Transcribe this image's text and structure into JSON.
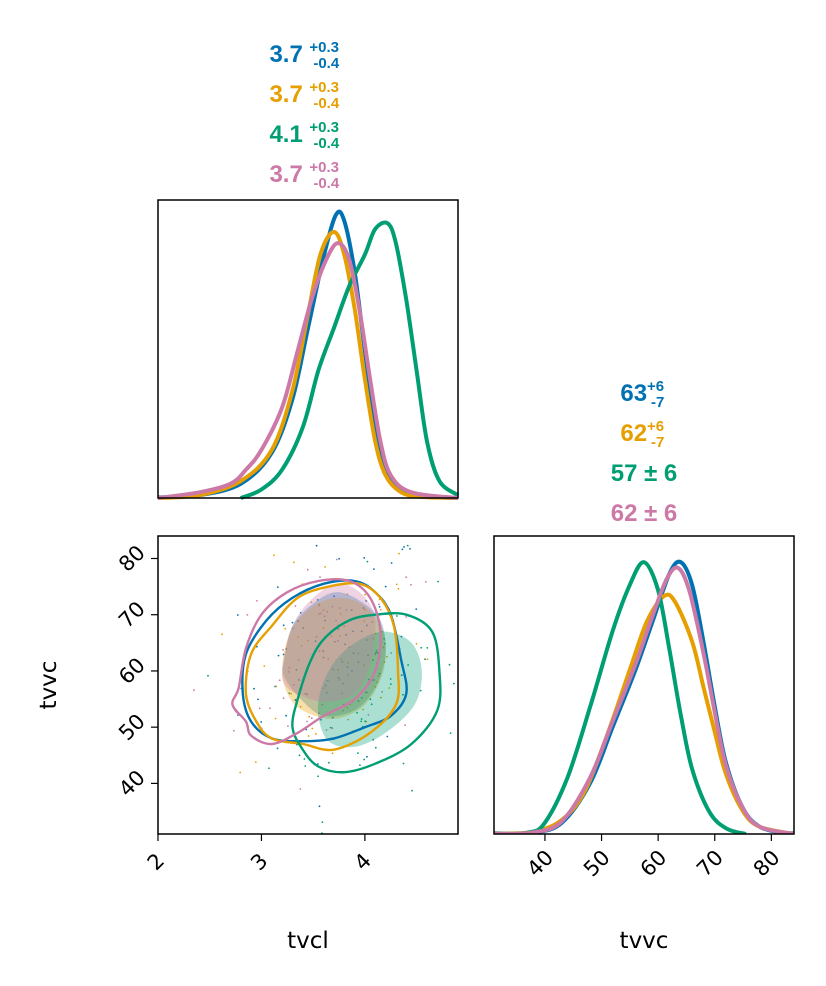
{
  "colors": {
    "blue": "#0072b2",
    "orange": "#e69f00",
    "green": "#009e73",
    "pink": "#cc79a7"
  },
  "chart_data": {
    "type": "corner",
    "params": [
      "tvcl",
      "tvvc"
    ],
    "axes": {
      "tvcl": {
        "label": "tvcl",
        "range": [
          2.0,
          4.9
        ],
        "ticks": [
          "2",
          "3",
          "4"
        ]
      },
      "tvvc": {
        "label": "tvvc",
        "range": [
          31,
          84
        ],
        "ticks": [
          "40",
          "50",
          "60",
          "70",
          "80"
        ]
      }
    },
    "series": [
      {
        "color": "#0072b2",
        "tvcl_summary": {
          "median": "3.7",
          "plus": "+0.3",
          "minus": "-0.4"
        },
        "tvvc_summary": {
          "median": "63",
          "plus": "+6",
          "minus": "-7"
        }
      },
      {
        "color": "#e69f00",
        "tvcl_summary": {
          "median": "3.7",
          "plus": "+0.3",
          "minus": "-0.4"
        },
        "tvvc_summary": {
          "median": "62",
          "plus": "+6",
          "minus": "-7"
        }
      },
      {
        "color": "#009e73",
        "tvcl_summary": {
          "median": "4.1",
          "plus": "+0.3",
          "minus": "-0.4"
        },
        "tvvc_summary": {
          "text": "57 ± 6"
        }
      },
      {
        "color": "#cc79a7",
        "tvcl_summary": {
          "median": "3.7",
          "plus": "+0.3",
          "minus": "-0.4"
        },
        "tvvc_summary": {
          "text": "62 ± 6"
        }
      }
    ],
    "marginal_tvcl": [
      {
        "color": "#0072b2",
        "points": [
          [
            2.0,
            0.002
          ],
          [
            2.4,
            0.01
          ],
          [
            2.8,
            0.05
          ],
          [
            3.1,
            0.16
          ],
          [
            3.3,
            0.35
          ],
          [
            3.45,
            0.6
          ],
          [
            3.6,
            0.85
          ],
          [
            3.72,
            1.0
          ],
          [
            3.8,
            0.98
          ],
          [
            3.9,
            0.8
          ],
          [
            4.0,
            0.52
          ],
          [
            4.1,
            0.25
          ],
          [
            4.2,
            0.1
          ],
          [
            4.35,
            0.03
          ],
          [
            4.55,
            0.006
          ],
          [
            4.9,
            0.0
          ]
        ]
      },
      {
        "color": "#e69f00",
        "points": [
          [
            2.0,
            0.0
          ],
          [
            2.4,
            0.01
          ],
          [
            2.8,
            0.06
          ],
          [
            3.1,
            0.17
          ],
          [
            3.3,
            0.38
          ],
          [
            3.45,
            0.65
          ],
          [
            3.57,
            0.86
          ],
          [
            3.7,
            0.94
          ],
          [
            3.8,
            0.86
          ],
          [
            3.9,
            0.67
          ],
          [
            4.0,
            0.42
          ],
          [
            4.1,
            0.2
          ],
          [
            4.2,
            0.08
          ],
          [
            4.35,
            0.02
          ],
          [
            4.55,
            0.004
          ],
          [
            4.9,
            0.0
          ]
        ]
      },
      {
        "color": "#009e73",
        "points": [
          [
            2.8,
            0.0
          ],
          [
            3.0,
            0.03
          ],
          [
            3.2,
            0.1
          ],
          [
            3.4,
            0.25
          ],
          [
            3.55,
            0.45
          ],
          [
            3.7,
            0.6
          ],
          [
            3.85,
            0.75
          ],
          [
            4.0,
            0.86
          ],
          [
            4.1,
            0.95
          ],
          [
            4.22,
            0.97
          ],
          [
            4.3,
            0.9
          ],
          [
            4.4,
            0.7
          ],
          [
            4.5,
            0.45
          ],
          [
            4.6,
            0.2
          ],
          [
            4.72,
            0.06
          ],
          [
            4.9,
            0.01
          ]
        ]
      },
      {
        "color": "#cc79a7",
        "points": [
          [
            2.0,
            0.0
          ],
          [
            2.4,
            0.02
          ],
          [
            2.7,
            0.05
          ],
          [
            2.85,
            0.1
          ],
          [
            3.0,
            0.17
          ],
          [
            3.2,
            0.32
          ],
          [
            3.35,
            0.52
          ],
          [
            3.5,
            0.72
          ],
          [
            3.65,
            0.86
          ],
          [
            3.75,
            0.9
          ],
          [
            3.85,
            0.84
          ],
          [
            3.95,
            0.66
          ],
          [
            4.05,
            0.42
          ],
          [
            4.15,
            0.2
          ],
          [
            4.25,
            0.08
          ],
          [
            4.45,
            0.02
          ],
          [
            4.9,
            0.0
          ]
        ]
      }
    ],
    "marginal_tvvc": [
      {
        "color": "#0072b2",
        "points": [
          [
            31,
            0.002
          ],
          [
            38,
            0.005
          ],
          [
            43,
            0.04
          ],
          [
            48,
            0.18
          ],
          [
            52,
            0.38
          ],
          [
            56,
            0.58
          ],
          [
            59,
            0.75
          ],
          [
            62,
            0.92
          ],
          [
            64,
            0.96
          ],
          [
            66,
            0.88
          ],
          [
            68,
            0.68
          ],
          [
            70,
            0.45
          ],
          [
            72,
            0.25
          ],
          [
            75,
            0.09
          ],
          [
            78,
            0.025
          ],
          [
            82,
            0.005
          ],
          [
            84,
            0.003
          ]
        ]
      },
      {
        "color": "#e69f00",
        "points": [
          [
            31,
            0.0
          ],
          [
            38,
            0.008
          ],
          [
            43,
            0.05
          ],
          [
            47,
            0.15
          ],
          [
            51,
            0.35
          ],
          [
            55,
            0.58
          ],
          [
            58,
            0.75
          ],
          [
            61,
            0.84
          ],
          [
            63,
            0.82
          ],
          [
            66,
            0.68
          ],
          [
            68,
            0.52
          ],
          [
            70,
            0.36
          ],
          [
            72,
            0.21
          ],
          [
            75,
            0.08
          ],
          [
            78,
            0.025
          ],
          [
            84,
            0.0
          ]
        ]
      },
      {
        "color": "#009e73",
        "points": [
          [
            31,
            0.0
          ],
          [
            37,
            0.005
          ],
          [
            40,
            0.04
          ],
          [
            44,
            0.2
          ],
          [
            48,
            0.45
          ],
          [
            52,
            0.72
          ],
          [
            55,
            0.88
          ],
          [
            57.5,
            0.96
          ],
          [
            60,
            0.86
          ],
          [
            62,
            0.65
          ],
          [
            64,
            0.42
          ],
          [
            66,
            0.23
          ],
          [
            69,
            0.08
          ],
          [
            72,
            0.02
          ],
          [
            75.5,
            0.0
          ]
        ]
      },
      {
        "color": "#cc79a7",
        "points": [
          [
            31,
            0.0
          ],
          [
            38,
            0.006
          ],
          [
            43,
            0.045
          ],
          [
            48,
            0.2
          ],
          [
            52,
            0.4
          ],
          [
            56,
            0.6
          ],
          [
            59,
            0.77
          ],
          [
            61.5,
            0.9
          ],
          [
            63.5,
            0.94
          ],
          [
            65.5,
            0.86
          ],
          [
            68,
            0.64
          ],
          [
            70,
            0.43
          ],
          [
            72,
            0.24
          ],
          [
            75,
            0.09
          ],
          [
            78,
            0.025
          ],
          [
            84,
            0.0
          ]
        ]
      }
    ],
    "joint_filled": [
      {
        "color": "#0072b2",
        "points": [
          [
            3.22,
            62
          ],
          [
            3.3,
            68
          ],
          [
            3.5,
            72
          ],
          [
            3.72,
            74
          ],
          [
            3.95,
            72.5
          ],
          [
            4.15,
            69
          ],
          [
            4.2,
            63
          ],
          [
            4.1,
            57
          ],
          [
            3.9,
            53
          ],
          [
            3.6,
            52
          ],
          [
            3.38,
            55
          ],
          [
            3.22,
            59
          ]
        ]
      },
      {
        "color": "#e69f00",
        "points": [
          [
            3.2,
            60
          ],
          [
            3.28,
            67
          ],
          [
            3.5,
            71.5
          ],
          [
            3.75,
            73
          ],
          [
            4.0,
            71.5
          ],
          [
            4.18,
            67
          ],
          [
            4.18,
            60
          ],
          [
            4.0,
            54
          ],
          [
            3.72,
            51.5
          ],
          [
            3.45,
            52.5
          ],
          [
            3.28,
            55
          ]
        ]
      },
      {
        "color": "#009e73",
        "points": [
          [
            3.58,
            57
          ],
          [
            3.72,
            62
          ],
          [
            3.95,
            65.5
          ],
          [
            4.2,
            67
          ],
          [
            4.45,
            65
          ],
          [
            4.55,
            60
          ],
          [
            4.48,
            54
          ],
          [
            4.2,
            49
          ],
          [
            3.9,
            46.5
          ],
          [
            3.65,
            47.5
          ],
          [
            3.55,
            52
          ]
        ]
      },
      {
        "color": "#cc79a7",
        "points": [
          [
            3.2,
            60
          ],
          [
            3.3,
            68
          ],
          [
            3.5,
            73
          ],
          [
            3.75,
            75.5
          ],
          [
            3.98,
            73.5
          ],
          [
            4.1,
            69
          ],
          [
            4.05,
            61
          ],
          [
            3.9,
            56
          ],
          [
            3.62,
            54.5
          ],
          [
            3.4,
            55.5
          ],
          [
            3.25,
            57
          ]
        ]
      }
    ],
    "joint_outline": [
      {
        "color": "#0072b2",
        "points": [
          [
            2.82,
            56
          ],
          [
            2.85,
            63
          ],
          [
            3.05,
            69
          ],
          [
            3.3,
            73
          ],
          [
            3.6,
            75.5
          ],
          [
            3.9,
            76
          ],
          [
            4.1,
            74
          ],
          [
            4.25,
            70
          ],
          [
            4.35,
            62
          ],
          [
            4.4,
            56
          ],
          [
            4.25,
            52
          ],
          [
            4.0,
            50
          ],
          [
            3.7,
            48
          ],
          [
            3.4,
            47.5
          ],
          [
            3.1,
            48
          ],
          [
            2.9,
            51
          ]
        ]
      },
      {
        "color": "#e69f00",
        "points": [
          [
            2.85,
            56
          ],
          [
            2.9,
            63
          ],
          [
            3.1,
            68
          ],
          [
            3.35,
            73
          ],
          [
            3.65,
            75
          ],
          [
            3.95,
            75.5
          ],
          [
            4.15,
            73
          ],
          [
            4.28,
            68
          ],
          [
            4.32,
            60
          ],
          [
            4.3,
            54
          ],
          [
            4.05,
            49
          ],
          [
            3.7,
            46
          ],
          [
            3.4,
            47
          ],
          [
            3.1,
            48
          ],
          [
            2.95,
            51
          ]
        ]
      },
      {
        "color": "#009e73",
        "points": [
          [
            3.35,
            55
          ],
          [
            3.48,
            62
          ],
          [
            3.62,
            66
          ],
          [
            3.85,
            69
          ],
          [
            4.1,
            70
          ],
          [
            4.4,
            70
          ],
          [
            4.65,
            67
          ],
          [
            4.72,
            60
          ],
          [
            4.7,
            53
          ],
          [
            4.45,
            47
          ],
          [
            4.1,
            43.5
          ],
          [
            3.8,
            42
          ],
          [
            3.55,
            43
          ],
          [
            3.4,
            46
          ],
          [
            3.3,
            50
          ]
        ]
      },
      {
        "color": "#cc79a7",
        "points": [
          [
            2.72,
            54
          ],
          [
            2.78,
            57
          ],
          [
            2.85,
            64
          ],
          [
            3.0,
            70
          ],
          [
            3.25,
            74
          ],
          [
            3.55,
            76
          ],
          [
            3.85,
            76
          ],
          [
            4.05,
            73
          ],
          [
            4.15,
            67
          ],
          [
            4.1,
            60
          ],
          [
            3.9,
            55
          ],
          [
            3.6,
            52
          ],
          [
            3.35,
            49
          ],
          [
            3.1,
            47
          ],
          [
            2.9,
            48.5
          ],
          [
            2.85,
            51
          ]
        ]
      }
    ]
  }
}
